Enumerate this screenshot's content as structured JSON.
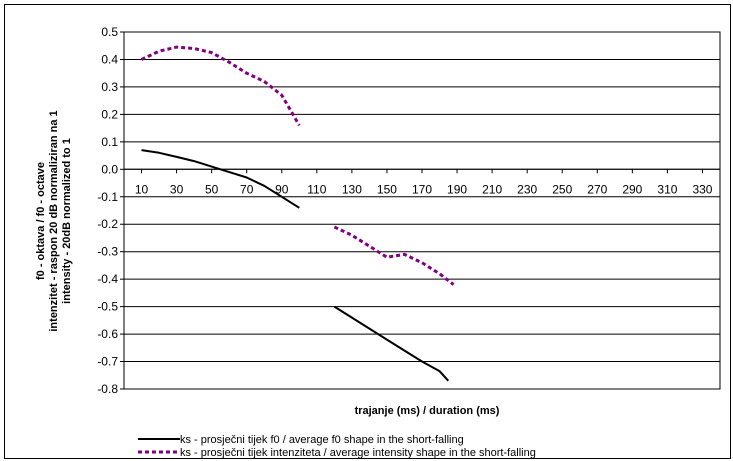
{
  "chart_data": {
    "type": "line",
    "title": "",
    "xlabel": "trajanje (ms) / duration (ms)",
    "ylabel_lines": [
      "f0 - oktava / f0 - octave",
      "intenzitet - raspon 20 dB normaliziran na 1",
      "intensity  - 20dB normalized to 1"
    ],
    "xlim": [
      0,
      340
    ],
    "ylim": [
      -0.8,
      0.5
    ],
    "x_ticks": [
      "10",
      "30",
      "50",
      "70",
      "90",
      "110",
      "130",
      "150",
      "170",
      "190",
      "210",
      "230",
      "250",
      "270",
      "290",
      "310",
      "330"
    ],
    "x_tick_values": [
      10,
      30,
      50,
      70,
      90,
      110,
      130,
      150,
      170,
      190,
      210,
      230,
      250,
      270,
      290,
      310,
      330
    ],
    "y_ticks": [
      "0.5",
      "0.4",
      "0.3",
      "0.2",
      "0.1",
      "0.0",
      "-0.1",
      "-0.2",
      "-0.3",
      "-0.4",
      "-0.5",
      "-0.6",
      "-0.7",
      "-0.8"
    ],
    "y_tick_values": [
      0.5,
      0.4,
      0.3,
      0.2,
      0.1,
      0.0,
      -0.1,
      -0.2,
      -0.3,
      -0.4,
      -0.5,
      -0.6,
      -0.7,
      -0.8
    ],
    "grid": true,
    "legend_position": "bottom",
    "series": [
      {
        "name": "ks - prosječni tijek f0 / average f0 shape in the short-falling",
        "color": "#000000",
        "style": "solid",
        "segments": [
          [
            {
              "x": 10,
              "y": 0.07
            },
            {
              "x": 20,
              "y": 0.06
            },
            {
              "x": 30,
              "y": 0.045
            },
            {
              "x": 40,
              "y": 0.03
            },
            {
              "x": 50,
              "y": 0.01
            },
            {
              "x": 60,
              "y": -0.01
            },
            {
              "x": 70,
              "y": -0.03
            },
            {
              "x": 80,
              "y": -0.06
            },
            {
              "x": 90,
              "y": -0.1
            },
            {
              "x": 100,
              "y": -0.14
            }
          ],
          [
            {
              "x": 120,
              "y": -0.5
            },
            {
              "x": 130,
              "y": -0.54
            },
            {
              "x": 140,
              "y": -0.58
            },
            {
              "x": 150,
              "y": -0.62
            },
            {
              "x": 160,
              "y": -0.66
            },
            {
              "x": 170,
              "y": -0.7
            },
            {
              "x": 180,
              "y": -0.735
            },
            {
              "x": 185,
              "y": -0.77
            }
          ]
        ]
      },
      {
        "name": "ks - prosječni tijek intenziteta / average intensity shape in the short-falling",
        "color": "#800080",
        "style": "dashed",
        "segments": [
          [
            {
              "x": 10,
              "y": 0.4
            },
            {
              "x": 20,
              "y": 0.43
            },
            {
              "x": 30,
              "y": 0.445
            },
            {
              "x": 40,
              "y": 0.44
            },
            {
              "x": 50,
              "y": 0.425
            },
            {
              "x": 60,
              "y": 0.39
            },
            {
              "x": 70,
              "y": 0.35
            },
            {
              "x": 80,
              "y": 0.32
            },
            {
              "x": 90,
              "y": 0.27
            },
            {
              "x": 100,
              "y": 0.16
            }
          ],
          [
            {
              "x": 120,
              "y": -0.21
            },
            {
              "x": 130,
              "y": -0.24
            },
            {
              "x": 140,
              "y": -0.28
            },
            {
              "x": 150,
              "y": -0.32
            },
            {
              "x": 160,
              "y": -0.31
            },
            {
              "x": 170,
              "y": -0.34
            },
            {
              "x": 180,
              "y": -0.38
            },
            {
              "x": 188,
              "y": -0.42
            }
          ]
        ]
      }
    ]
  }
}
